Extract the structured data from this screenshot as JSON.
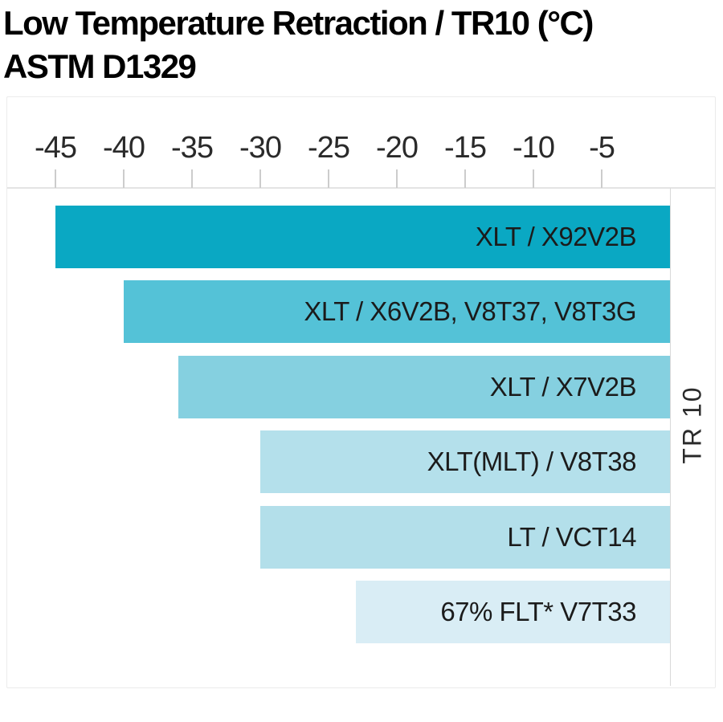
{
  "title": {
    "line1": "Low Temperature Retraction / TR10 (°C)",
    "line2": "ASTM D1329"
  },
  "chart_data": {
    "type": "bar",
    "orientation": "horizontal",
    "title": "Low Temperature Retraction / TR10 (°C) ASTM D1329",
    "xlabel": "",
    "ylabel_right": "TR 10",
    "axis_side": "top",
    "grid": false,
    "legend": "none",
    "xlim": [
      -48.5,
      0
    ],
    "x_ticks": [
      -45,
      -40,
      -35,
      -30,
      -25,
      -20,
      -15,
      -10,
      -5
    ],
    "categories": [
      "XLT / X92V2B",
      "XLT / X6V2B, V8T37, V8T3G",
      "XLT / X7V2B",
      "XLT(MLT) / V8T38",
      "LT / VCT14",
      "67% FLT* V7T33"
    ],
    "values": [
      -45,
      -40,
      -36,
      -30,
      -30,
      -23
    ],
    "bar_colors": [
      "#0aa8c3",
      "#54c2d7",
      "#85d0e0",
      "#b4e0eb",
      "#b3dfea",
      "#d9edf5"
    ],
    "label_position": "inside-right"
  },
  "colors": {
    "background": "#ffffff",
    "panel_border": "#ebebeb",
    "axis_line": "#e4e4e4",
    "tick_mark": "#cccccc",
    "zero_line": "#d9d9d9",
    "title_text": "#000000",
    "tick_text": "#2a2a2a",
    "bar_label_text": "#1b1b1b"
  }
}
